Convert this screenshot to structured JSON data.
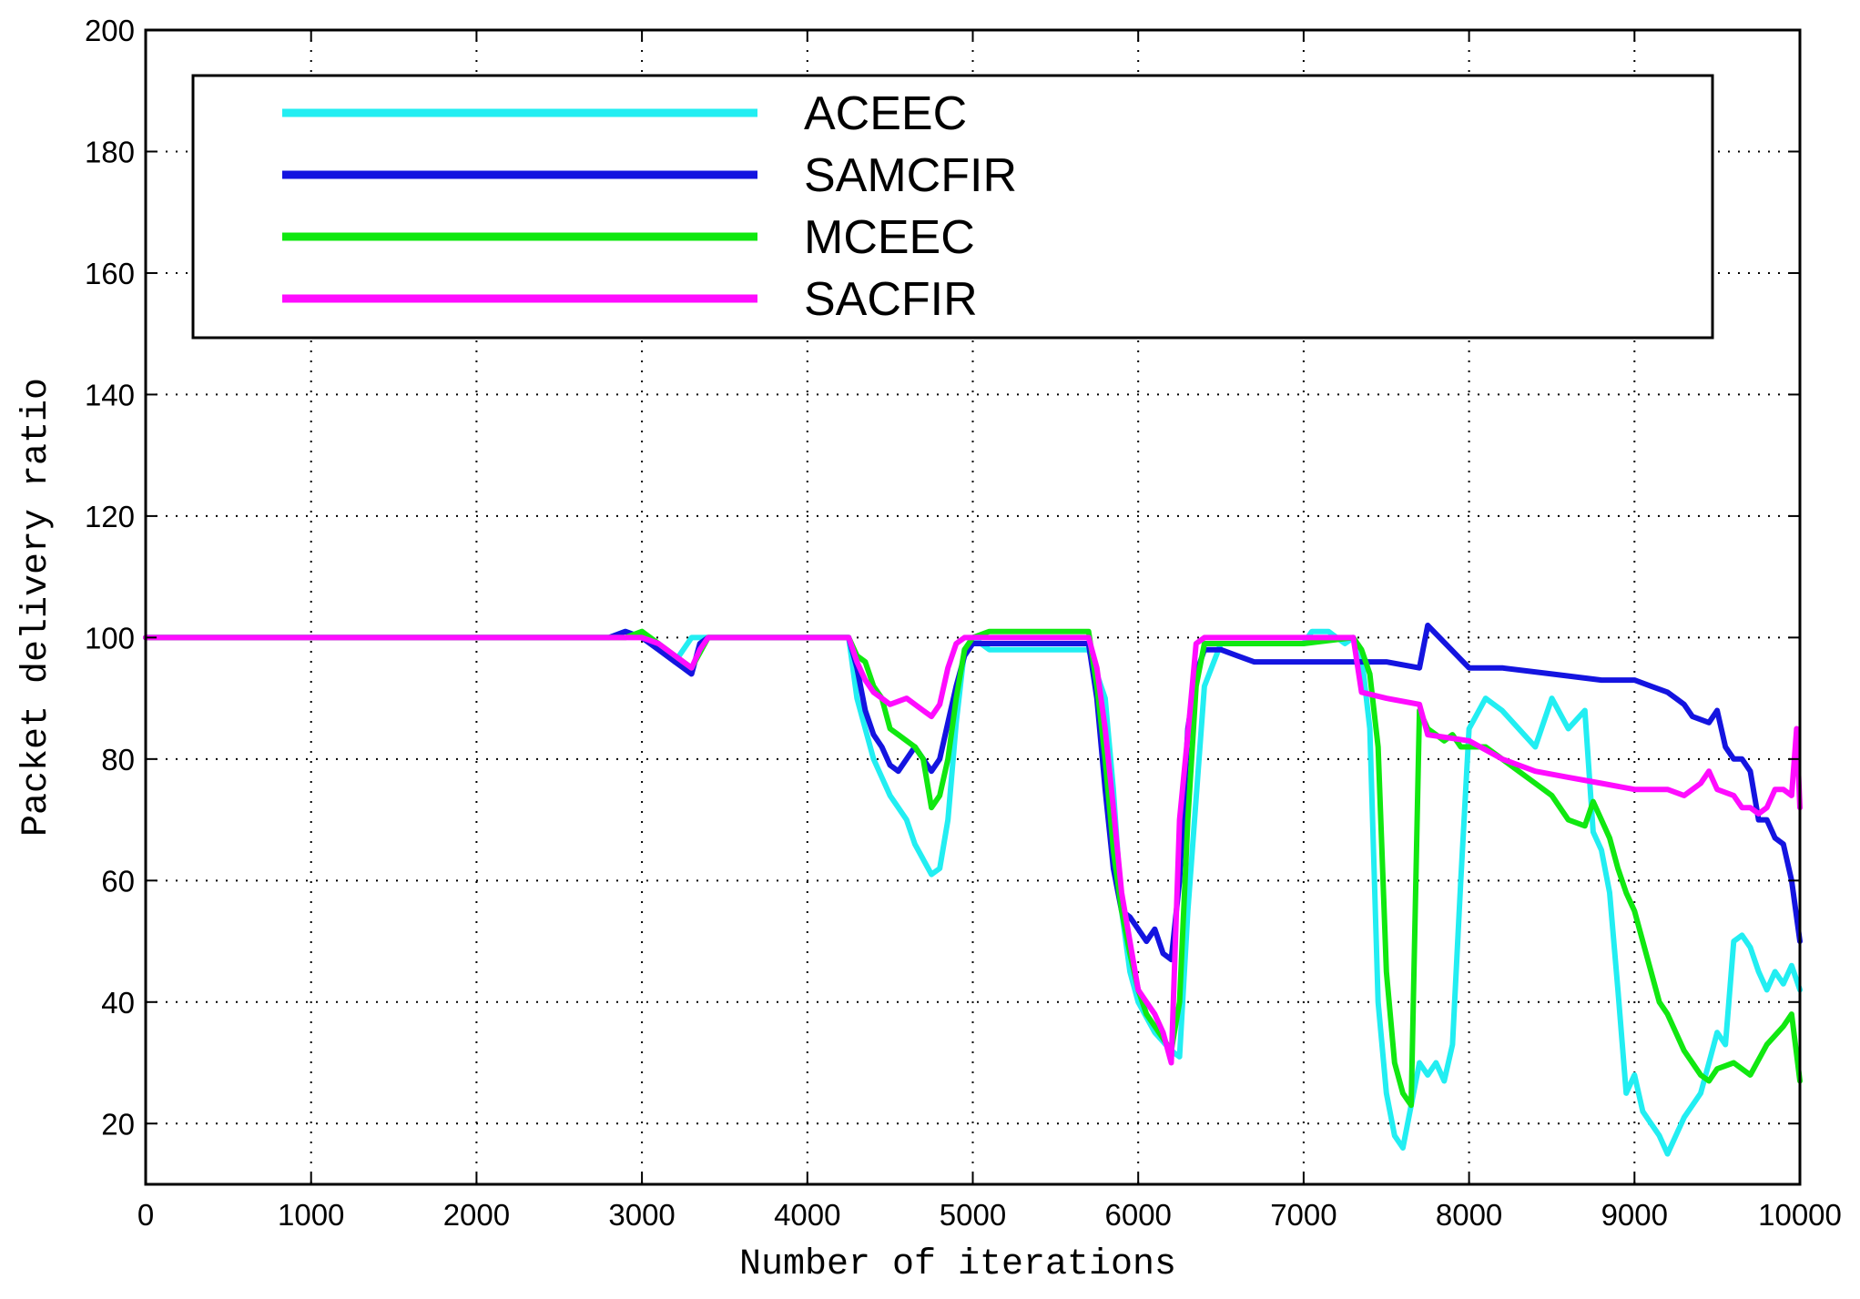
{
  "chart_data": {
    "type": "line",
    "title": "",
    "xlabel": "Number of iterations",
    "ylabel": "Packet delivery ratio",
    "xlim": [
      0,
      10000
    ],
    "ylim": [
      10,
      200
    ],
    "xticks": [
      0,
      1000,
      2000,
      3000,
      4000,
      5000,
      6000,
      7000,
      8000,
      9000,
      10000
    ],
    "yticks": [
      20,
      40,
      60,
      80,
      100,
      120,
      140,
      160,
      180,
      200
    ],
    "grid": true,
    "legend_position": "top",
    "series": [
      {
        "name": "ACEEC",
        "color": "#22eef2",
        "x": [
          0,
          2800,
          2900,
          3000,
          3100,
          3200,
          3300,
          3400,
          4250,
          4300,
          4400,
          4500,
          4550,
          4600,
          4650,
          4750,
          4800,
          4850,
          4900,
          4950,
          5000,
          5100,
          5700,
          5800,
          5850,
          5900,
          5950,
          6000,
          6100,
          6200,
          6250,
          6300,
          6400,
          6500,
          7000,
          7050,
          7150,
          7200,
          7250,
          7300,
          7350,
          7400,
          7450,
          7500,
          7550,
          7600,
          7700,
          7750,
          7800,
          7850,
          7900,
          7950,
          8000,
          8100,
          8200,
          8300,
          8400,
          8500,
          8600,
          8700,
          8750,
          8800,
          8850,
          8900,
          8950,
          9000,
          9050,
          9100,
          9150,
          9200,
          9300,
          9400,
          9450,
          9500,
          9550,
          9600,
          9650,
          9700,
          9750,
          9800,
          9850,
          9900,
          9950,
          10000
        ],
        "values": [
          100,
          100,
          101,
          100,
          99,
          96,
          100,
          100,
          100,
          90,
          80,
          74,
          72,
          70,
          66,
          61,
          62,
          70,
          86,
          98,
          100,
          98,
          98,
          90,
          75,
          55,
          45,
          40,
          35,
          32,
          31,
          55,
          92,
          99,
          99,
          101,
          101,
          100,
          99,
          100,
          97,
          85,
          40,
          25,
          18,
          16,
          30,
          28,
          30,
          27,
          33,
          60,
          85,
          90,
          88,
          85,
          82,
          90,
          85,
          88,
          68,
          65,
          58,
          42,
          25,
          28,
          22,
          20,
          18,
          15,
          21,
          25,
          30,
          35,
          33,
          50,
          51,
          49,
          45,
          42,
          45,
          43,
          46,
          42
        ]
      },
      {
        "name": "SAMCFIR",
        "color": "#1414e0",
        "x": [
          0,
          2800,
          2900,
          3000,
          3100,
          3200,
          3250,
          3300,
          3350,
          3400,
          4250,
          4300,
          4350,
          4400,
          4450,
          4500,
          4550,
          4600,
          4650,
          4700,
          4750,
          4800,
          4850,
          4900,
          4950,
          5000,
          5700,
          5750,
          5800,
          5850,
          5900,
          5950,
          6000,
          6050,
          6100,
          6150,
          6200,
          6250,
          6300,
          6350,
          6400,
          6450,
          6500,
          6600,
          6700,
          6800,
          7300,
          7500,
          7700,
          7750,
          8000,
          8200,
          8500,
          8800,
          9000,
          9100,
          9200,
          9250,
          9300,
          9350,
          9450,
          9500,
          9550,
          9600,
          9650,
          9700,
          9750,
          9800,
          9850,
          9900,
          9950,
          10000
        ],
        "values": [
          100,
          100,
          101,
          100,
          98,
          96,
          95,
          94,
          99,
          100,
          100,
          95,
          88,
          84,
          82,
          79,
          78,
          80,
          82,
          80,
          78,
          80,
          86,
          92,
          97,
          99,
          99,
          90,
          75,
          62,
          55,
          54,
          52,
          50,
          52,
          48,
          47,
          60,
          85,
          94,
          98,
          98,
          98,
          97,
          96,
          96,
          96,
          96,
          95,
          102,
          95,
          95,
          94,
          93,
          93,
          92,
          91,
          90,
          89,
          87,
          86,
          88,
          82,
          80,
          80,
          78,
          70,
          70,
          67,
          66,
          60,
          50
        ]
      },
      {
        "name": "MCEEC",
        "color": "#10e810",
        "x": [
          0,
          2800,
          2900,
          3000,
          3100,
          3200,
          3250,
          3300,
          3400,
          4250,
          4300,
          4350,
          4400,
          4450,
          4500,
          4550,
          4600,
          4650,
          4700,
          4750,
          4800,
          4850,
          4900,
          4950,
          5000,
          5100,
          5700,
          5750,
          5800,
          5850,
          5900,
          5950,
          6000,
          6050,
          6100,
          6150,
          6200,
          6250,
          6300,
          6350,
          6400,
          6450,
          6500,
          7000,
          7300,
          7350,
          7400,
          7450,
          7500,
          7550,
          7600,
          7650,
          7700,
          7750,
          7800,
          7850,
          7900,
          7950,
          8000,
          8100,
          8200,
          8300,
          8400,
          8500,
          8600,
          8700,
          8750,
          8800,
          8850,
          8900,
          8950,
          9000,
          9050,
          9100,
          9150,
          9200,
          9250,
          9300,
          9350,
          9400,
          9450,
          9500,
          9600,
          9700,
          9800,
          9900,
          9950,
          10000
        ],
        "values": [
          100,
          100,
          100,
          101,
          99,
          97,
          96,
          95,
          100,
          100,
          97,
          96,
          92,
          90,
          85,
          84,
          83,
          82,
          80,
          72,
          74,
          80,
          90,
          98,
          100,
          101,
          101,
          92,
          80,
          65,
          55,
          48,
          42,
          38,
          36,
          34,
          32,
          40,
          70,
          92,
          99,
          99,
          99,
          99,
          100,
          98,
          94,
          82,
          45,
          30,
          25,
          23,
          88,
          85,
          84,
          83,
          84,
          82,
          82,
          82,
          80,
          78,
          76,
          74,
          70,
          69,
          73,
          70,
          67,
          62,
          58,
          55,
          50,
          45,
          40,
          38,
          35,
          32,
          30,
          28,
          27,
          29,
          30,
          28,
          33,
          36,
          38,
          27
        ]
      },
      {
        "name": "SACFIR",
        "color": "#ff0cff",
        "x": [
          0,
          2800,
          2900,
          3000,
          3100,
          3200,
          3250,
          3300,
          3350,
          3400,
          4250,
          4300,
          4350,
          4400,
          4450,
          4500,
          4600,
          4700,
          4750,
          4800,
          4850,
          4900,
          4950,
          5000,
          5700,
          5750,
          5800,
          5850,
          5900,
          5950,
          6000,
          6050,
          6100,
          6150,
          6200,
          6250,
          6300,
          6350,
          6400,
          7300,
          7350,
          7500,
          7700,
          7750,
          8000,
          8200,
          8400,
          8600,
          8800,
          9000,
          9200,
          9300,
          9400,
          9450,
          9500,
          9600,
          9650,
          9700,
          9750,
          9800,
          9850,
          9900,
          9950,
          9980,
          10000
        ],
        "values": [
          100,
          100,
          100,
          100,
          99,
          97,
          96,
          95,
          98,
          100,
          100,
          96,
          93,
          91,
          90,
          89,
          90,
          88,
          87,
          89,
          95,
          99,
          100,
          100,
          100,
          95,
          85,
          72,
          58,
          50,
          42,
          40,
          38,
          35,
          30,
          70,
          84,
          99,
          100,
          100,
          91,
          90,
          89,
          84,
          83,
          80,
          78,
          77,
          76,
          75,
          75,
          74,
          76,
          78,
          75,
          74,
          72,
          72,
          71,
          72,
          75,
          75,
          74,
          85,
          72
        ]
      }
    ]
  }
}
